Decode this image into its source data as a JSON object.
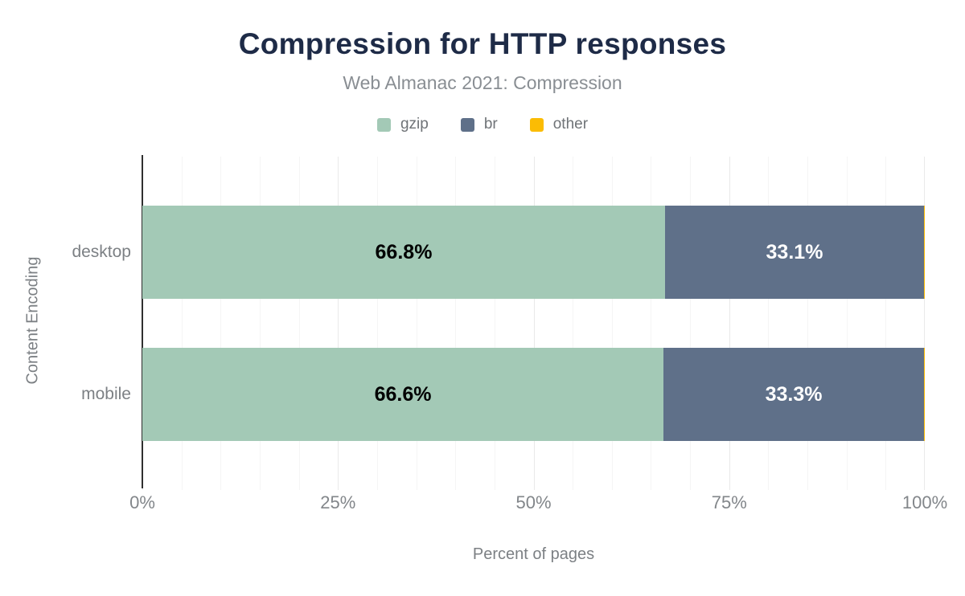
{
  "header": {
    "title": "Compression for HTTP responses",
    "subtitle": "Web Almanac 2021: Compression"
  },
  "colors": {
    "title_navy": "#1e2b47",
    "gzip_green": "#a3c9b6",
    "br_slate": "#5f7089",
    "other_gold": "#fbbc04",
    "axis_line": "#2f2f2f",
    "secondary_text": "#7c8084"
  },
  "chart_data": {
    "type": "bar",
    "orientation": "horizontal",
    "stacked": true,
    "title": "Compression for HTTP responses",
    "subtitle": "Web Almanac 2021: Compression",
    "categories": [
      "desktop",
      "mobile"
    ],
    "series": [
      {
        "name": "gzip",
        "color": "#a3c9b6",
        "label_color": "#000000",
        "values": [
          66.8,
          66.6
        ]
      },
      {
        "name": "br",
        "color": "#5f7089",
        "label_color": "#ffffff",
        "values": [
          33.1,
          33.3
        ]
      },
      {
        "name": "other",
        "color": "#fbbc04",
        "label_color": "#000000",
        "values": [
          0.1,
          0.1
        ]
      }
    ],
    "data_labels": [
      [
        "66.8%",
        "33.1%",
        ""
      ],
      [
        "66.6%",
        "33.3%",
        ""
      ]
    ],
    "xlabel": "Percent of pages",
    "ylabel": "Content Encoding",
    "x_ticks": [
      "0%",
      "25%",
      "50%",
      "75%",
      "100%"
    ],
    "xlim": [
      0,
      100
    ],
    "grid": "vertical minor every 5%, major every 25%",
    "legend_position": "top"
  }
}
